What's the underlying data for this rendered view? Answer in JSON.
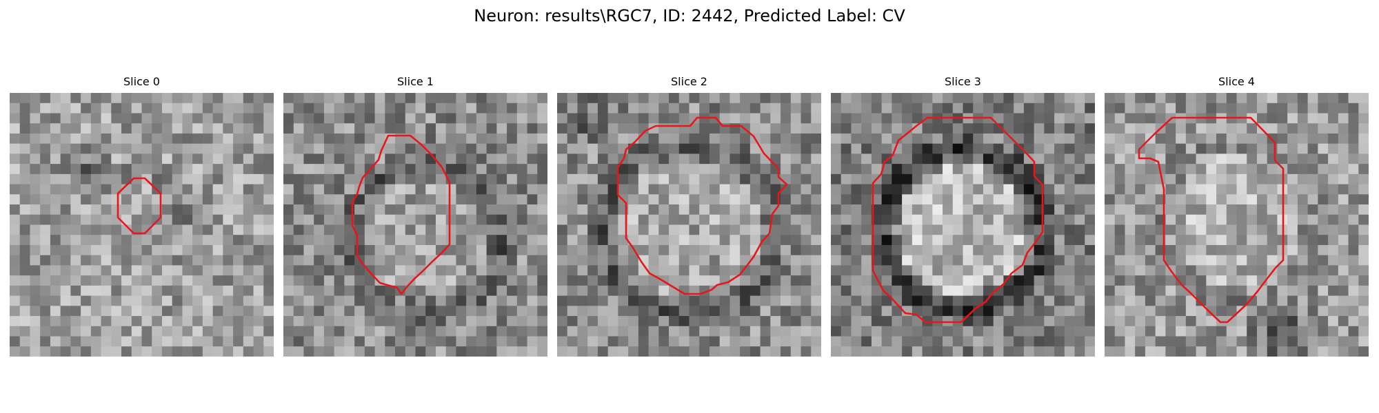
{
  "figure": {
    "title": "Neuron: results\\RGC7, ID: 2442, Predicted Label: CV"
  },
  "panels": [
    {
      "title": "Slice 0"
    },
    {
      "title": "Slice 1"
    },
    {
      "title": "Slice 2"
    },
    {
      "title": "Slice 3"
    },
    {
      "title": "Slice 4"
    }
  ],
  "colors": {
    "contour": "#e8161a",
    "background": "#ffffff"
  }
}
